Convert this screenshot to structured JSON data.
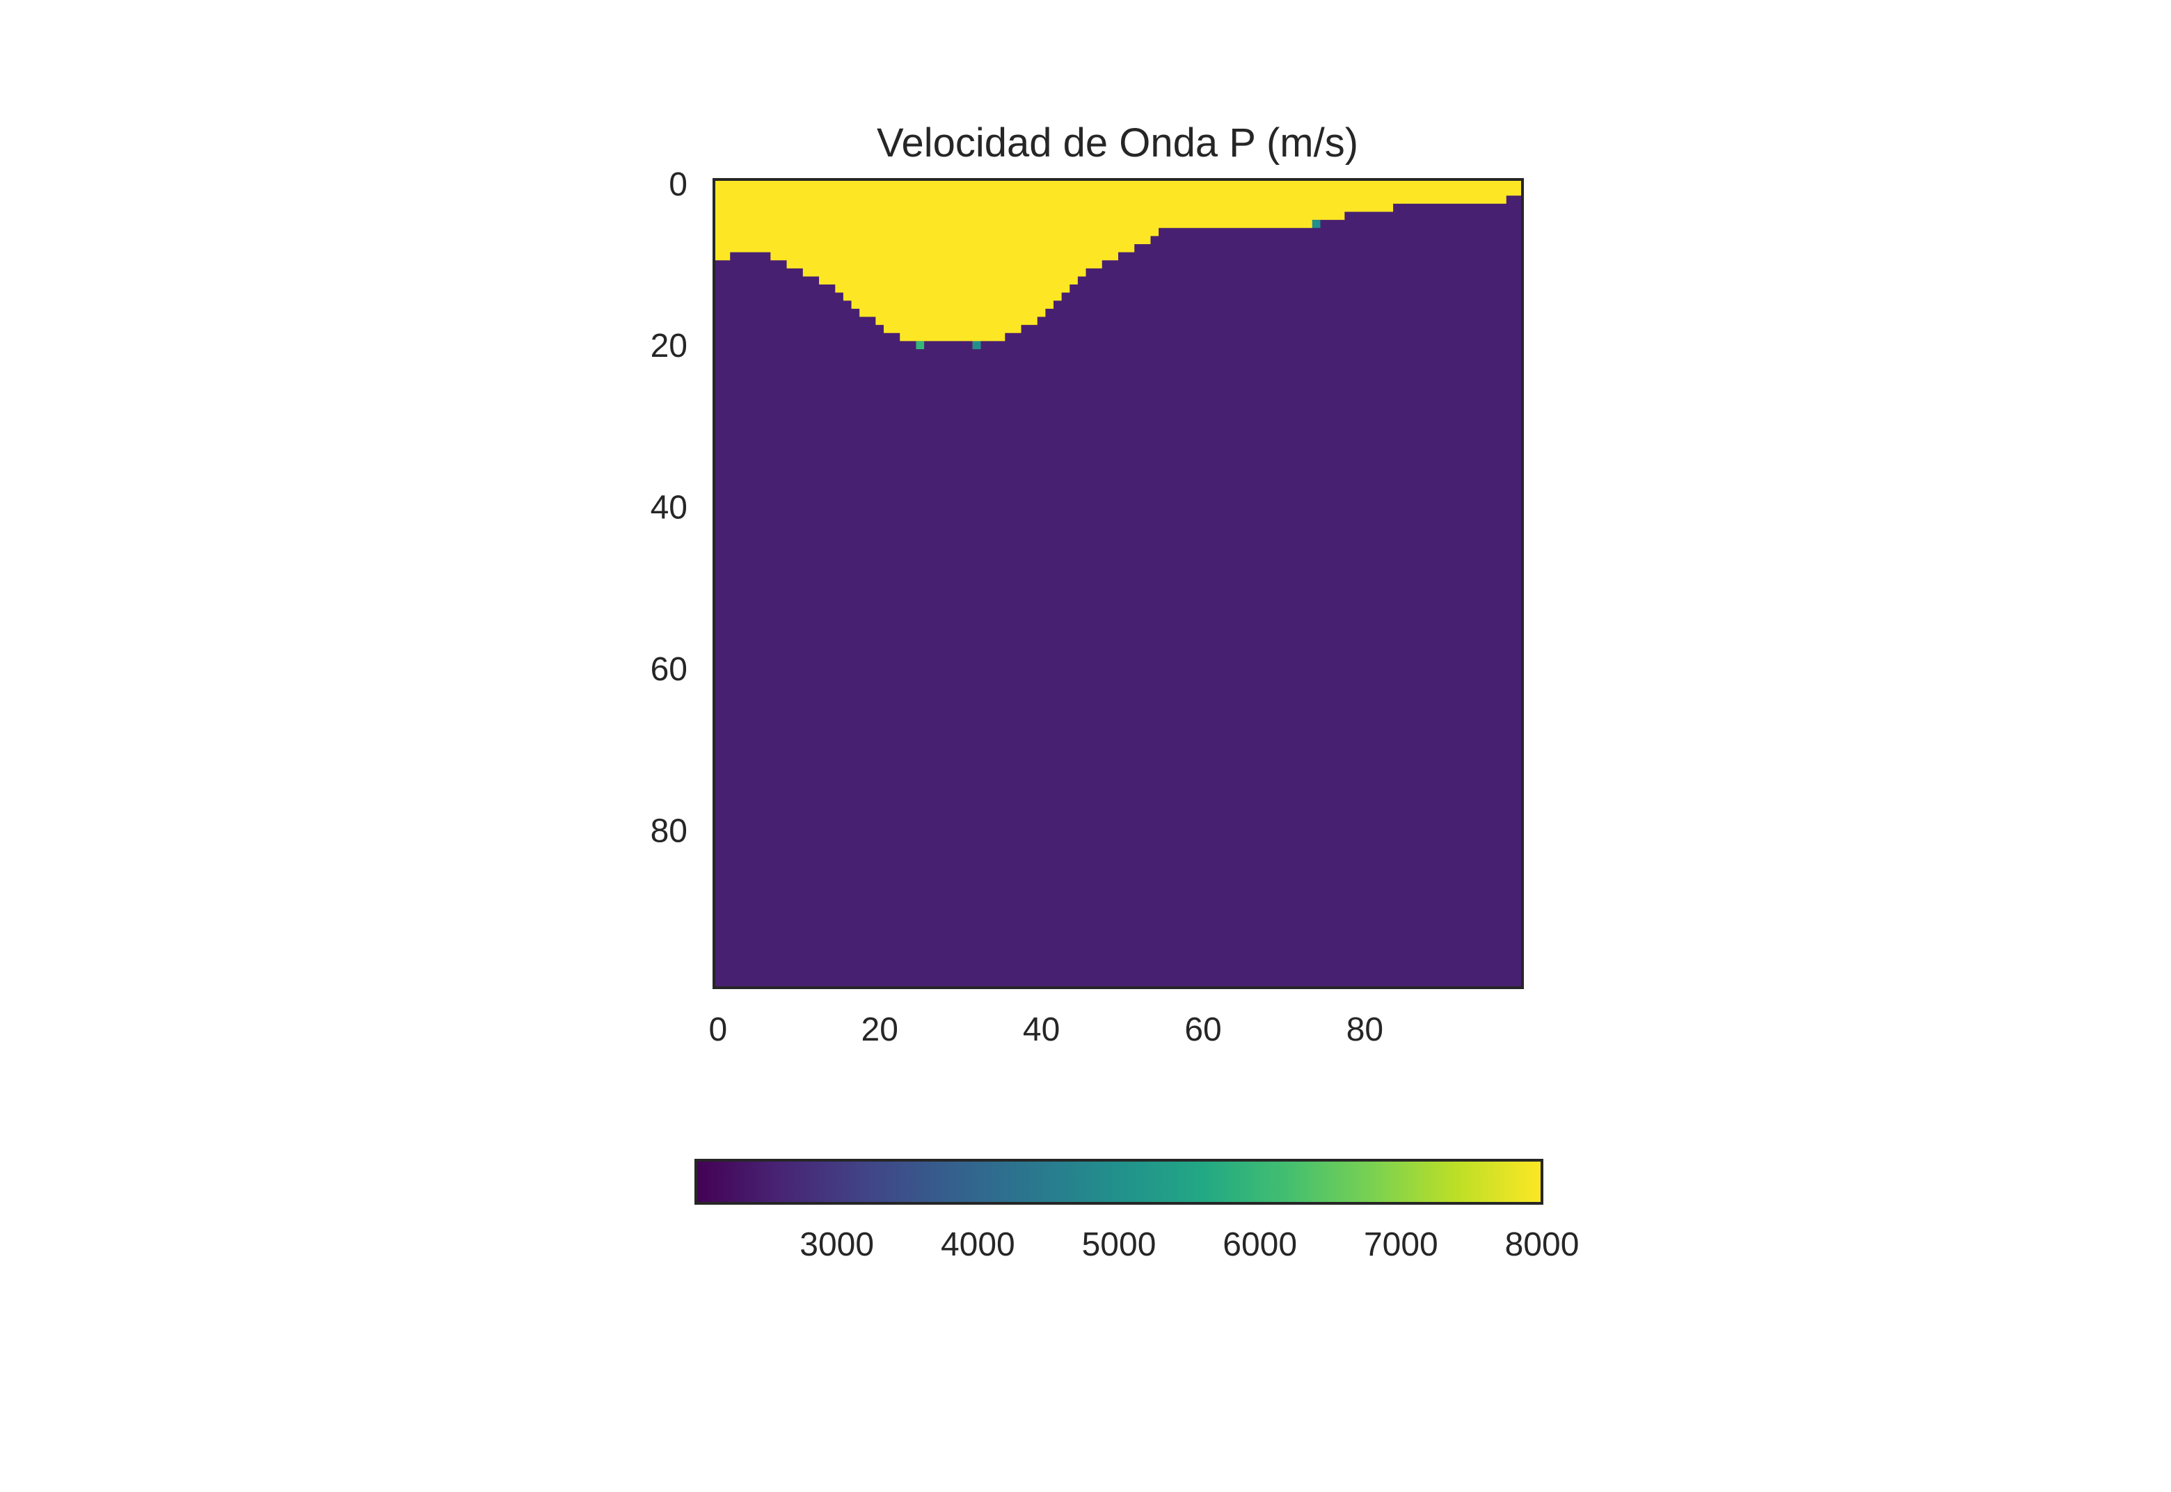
{
  "chart_data": {
    "type": "heatmap",
    "title": "Velocidad de Onda P (m/s)",
    "xlabel": "",
    "ylabel": "",
    "grid_size": [
      100,
      100
    ],
    "xlim": [
      0,
      100
    ],
    "ylim": [
      0,
      100
    ],
    "y_axis_inverted": true,
    "x_ticks": [
      0,
      20,
      40,
      60,
      80
    ],
    "y_ticks": [
      0,
      20,
      40,
      60,
      80
    ],
    "colormap": "viridis",
    "colorbar": {
      "orientation": "horizontal",
      "placement": "below",
      "range": [
        2000,
        8000
      ],
      "ticks": [
        3000,
        4000,
        5000,
        6000,
        7000,
        8000
      ]
    },
    "layers": [
      {
        "name": "",
        "value": 8000,
        "color": "#fde725"
      },
      {
        "name": "",
        "value": 2400,
        "color": "#482071"
      }
    ],
    "interface_depth_steps": [
      {
        "x_start": 0,
        "x_end": 2,
        "depth": 10
      },
      {
        "x_start": 2,
        "x_end": 7,
        "depth": 9
      },
      {
        "x_start": 7,
        "x_end": 9,
        "depth": 10
      },
      {
        "x_start": 9,
        "x_end": 11,
        "depth": 11
      },
      {
        "x_start": 11,
        "x_end": 13,
        "depth": 12
      },
      {
        "x_start": 13,
        "x_end": 15,
        "depth": 13
      },
      {
        "x_start": 15,
        "x_end": 16,
        "depth": 14
      },
      {
        "x_start": 16,
        "x_end": 17,
        "depth": 15
      },
      {
        "x_start": 17,
        "x_end": 18,
        "depth": 16
      },
      {
        "x_start": 18,
        "x_end": 20,
        "depth": 17
      },
      {
        "x_start": 20,
        "x_end": 21,
        "depth": 18
      },
      {
        "x_start": 21,
        "x_end": 23,
        "depth": 19
      },
      {
        "x_start": 23,
        "x_end": 32,
        "depth": 20
      },
      {
        "x_start": 32,
        "x_end": 33,
        "depth": 21
      },
      {
        "x_start": 33,
        "x_end": 36,
        "depth": 20
      },
      {
        "x_start": 36,
        "x_end": 38,
        "depth": 19
      },
      {
        "x_start": 38,
        "x_end": 40,
        "depth": 18
      },
      {
        "x_start": 40,
        "x_end": 41,
        "depth": 17
      },
      {
        "x_start": 41,
        "x_end": 42,
        "depth": 16
      },
      {
        "x_start": 42,
        "x_end": 43,
        "depth": 15
      },
      {
        "x_start": 43,
        "x_end": 44,
        "depth": 14
      },
      {
        "x_start": 44,
        "x_end": 45,
        "depth": 13
      },
      {
        "x_start": 45,
        "x_end": 46,
        "depth": 12
      },
      {
        "x_start": 46,
        "x_end": 48,
        "depth": 11
      },
      {
        "x_start": 48,
        "x_end": 50,
        "depth": 10
      },
      {
        "x_start": 50,
        "x_end": 52,
        "depth": 9
      },
      {
        "x_start": 52,
        "x_end": 54,
        "depth": 8
      },
      {
        "x_start": 54,
        "x_end": 55,
        "depth": 7
      },
      {
        "x_start": 55,
        "x_end": 74,
        "depth": 6
      },
      {
        "x_start": 74,
        "x_end": 78,
        "depth": 5
      },
      {
        "x_start": 78,
        "x_end": 84,
        "depth": 4
      },
      {
        "x_start": 84,
        "x_end": 98,
        "depth": 3
      },
      {
        "x_start": 98,
        "x_end": 100,
        "depth": 2
      }
    ],
    "boundary_cells": [
      {
        "x": 25,
        "y": 20,
        "value": 6000,
        "color": "#35b779"
      },
      {
        "x": 32,
        "y": 20,
        "value": 5000,
        "color": "#21908d"
      },
      {
        "x": 74,
        "y": 5,
        "value": 5000,
        "color": "#21908d"
      }
    ]
  }
}
